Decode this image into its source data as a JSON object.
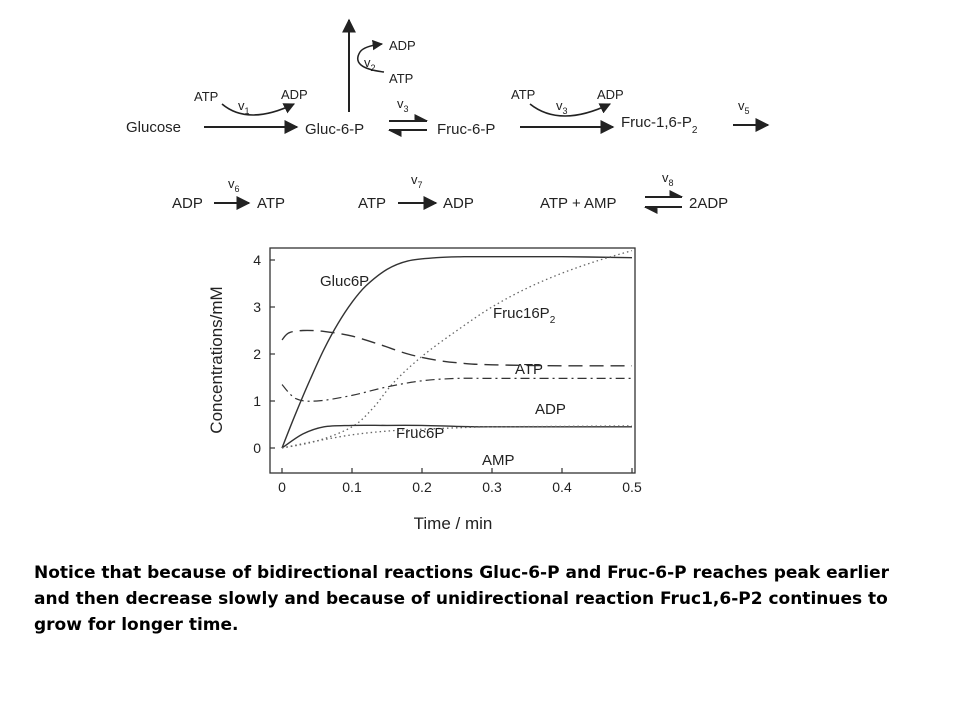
{
  "scheme": {
    "row1": {
      "glucose": "Glucose",
      "gluc6p": "Gluc-6-P",
      "fruc6p": "Fruc-6-P",
      "fruc16p2": "Fruc-1,6-P",
      "fruc16p2_sub": "2",
      "v1_atp": "ATP",
      "v1_adp": "ADP",
      "v1": "v",
      "v1_sub": "1",
      "v2_adp": "ADP",
      "v2_atp": "ATP",
      "v2": "v",
      "v2_sub": "2",
      "v3": "v",
      "v3_sub": "3",
      "v4_atp": "ATP",
      "v4_adp": "ADP",
      "v4": "v",
      "v4_sub": "3",
      "v5": "v",
      "v5_sub": "5"
    },
    "row2": {
      "r6_left": "ADP",
      "r6_right": "ATP",
      "v6": "v",
      "v6_sub": "6",
      "r7_left": "ATP",
      "r7_right": "ADP",
      "v7": "v",
      "v7_sub": "7",
      "r8_left": "ATP + AMP",
      "r8_right": "2ADP",
      "v8": "v",
      "v8_sub": "8"
    }
  },
  "chart_data": {
    "type": "line",
    "xlabel": "Time / min",
    "ylabel": "Concentrations/mM",
    "xlim": [
      0,
      0.5
    ],
    "ylim": [
      -0.1,
      4.2
    ],
    "xticks": [
      "0",
      "0.1",
      "0.2",
      "0.3",
      "0.4",
      "0.5"
    ],
    "yticks": [
      "0",
      "1",
      "2",
      "3",
      "4"
    ],
    "series": [
      {
        "name": "Gluc6P",
        "style": "solid",
        "x": [
          0,
          0.02,
          0.04,
          0.06,
          0.08,
          0.1,
          0.12,
          0.15,
          0.18,
          0.22,
          0.26,
          0.3,
          0.4,
          0.5
        ],
        "y": [
          0,
          0.75,
          1.45,
          2.1,
          2.65,
          3.1,
          3.45,
          3.8,
          3.98,
          4.05,
          4.07,
          4.07,
          4.07,
          4.05
        ]
      },
      {
        "name": "Fruc16P",
        "name_sub": "2",
        "style": "dotted",
        "x": [
          0,
          0.05,
          0.1,
          0.13,
          0.16,
          0.2,
          0.25,
          0.3,
          0.35,
          0.4,
          0.45,
          0.5
        ],
        "y": [
          0,
          0.15,
          0.45,
          0.85,
          1.4,
          1.95,
          2.5,
          3.0,
          3.4,
          3.72,
          3.98,
          4.2
        ]
      },
      {
        "name": "ATP",
        "style": "dashed",
        "x": [
          0,
          0.01,
          0.03,
          0.06,
          0.1,
          0.14,
          0.18,
          0.22,
          0.26,
          0.3,
          0.4,
          0.5
        ],
        "y": [
          2.3,
          2.45,
          2.5,
          2.48,
          2.38,
          2.2,
          2.0,
          1.87,
          1.8,
          1.77,
          1.75,
          1.75
        ]
      },
      {
        "name": "ADP",
        "style": "dashdot",
        "x": [
          0,
          0.02,
          0.05,
          0.1,
          0.15,
          0.2,
          0.25,
          0.3,
          0.4,
          0.5
        ],
        "y": [
          1.35,
          1.05,
          1.0,
          1.12,
          1.3,
          1.43,
          1.48,
          1.48,
          1.48,
          1.48
        ]
      },
      {
        "name": "Fruc6P",
        "style": "solid",
        "x": [
          0,
          0.03,
          0.06,
          0.1,
          0.15,
          0.2,
          0.25,
          0.3,
          0.4,
          0.5
        ],
        "y": [
          0,
          0.3,
          0.45,
          0.48,
          0.48,
          0.48,
          0.46,
          0.45,
          0.45,
          0.45
        ]
      },
      {
        "name": "AMP",
        "style": "dotted",
        "x": [
          0,
          0.05,
          0.1,
          0.15,
          0.2,
          0.25,
          0.3,
          0.4,
          0.5
        ],
        "y": [
          0,
          0.15,
          0.28,
          0.36,
          0.4,
          0.43,
          0.45,
          0.46,
          0.47
        ]
      }
    ]
  },
  "note": "Notice that because of bidirectional reactions Gluc-6-P and Fruc-6-P reaches peak earlier and then decrease slowly and because of unidirectional reaction Fruc1,6-P2 continues to grow for longer time."
}
